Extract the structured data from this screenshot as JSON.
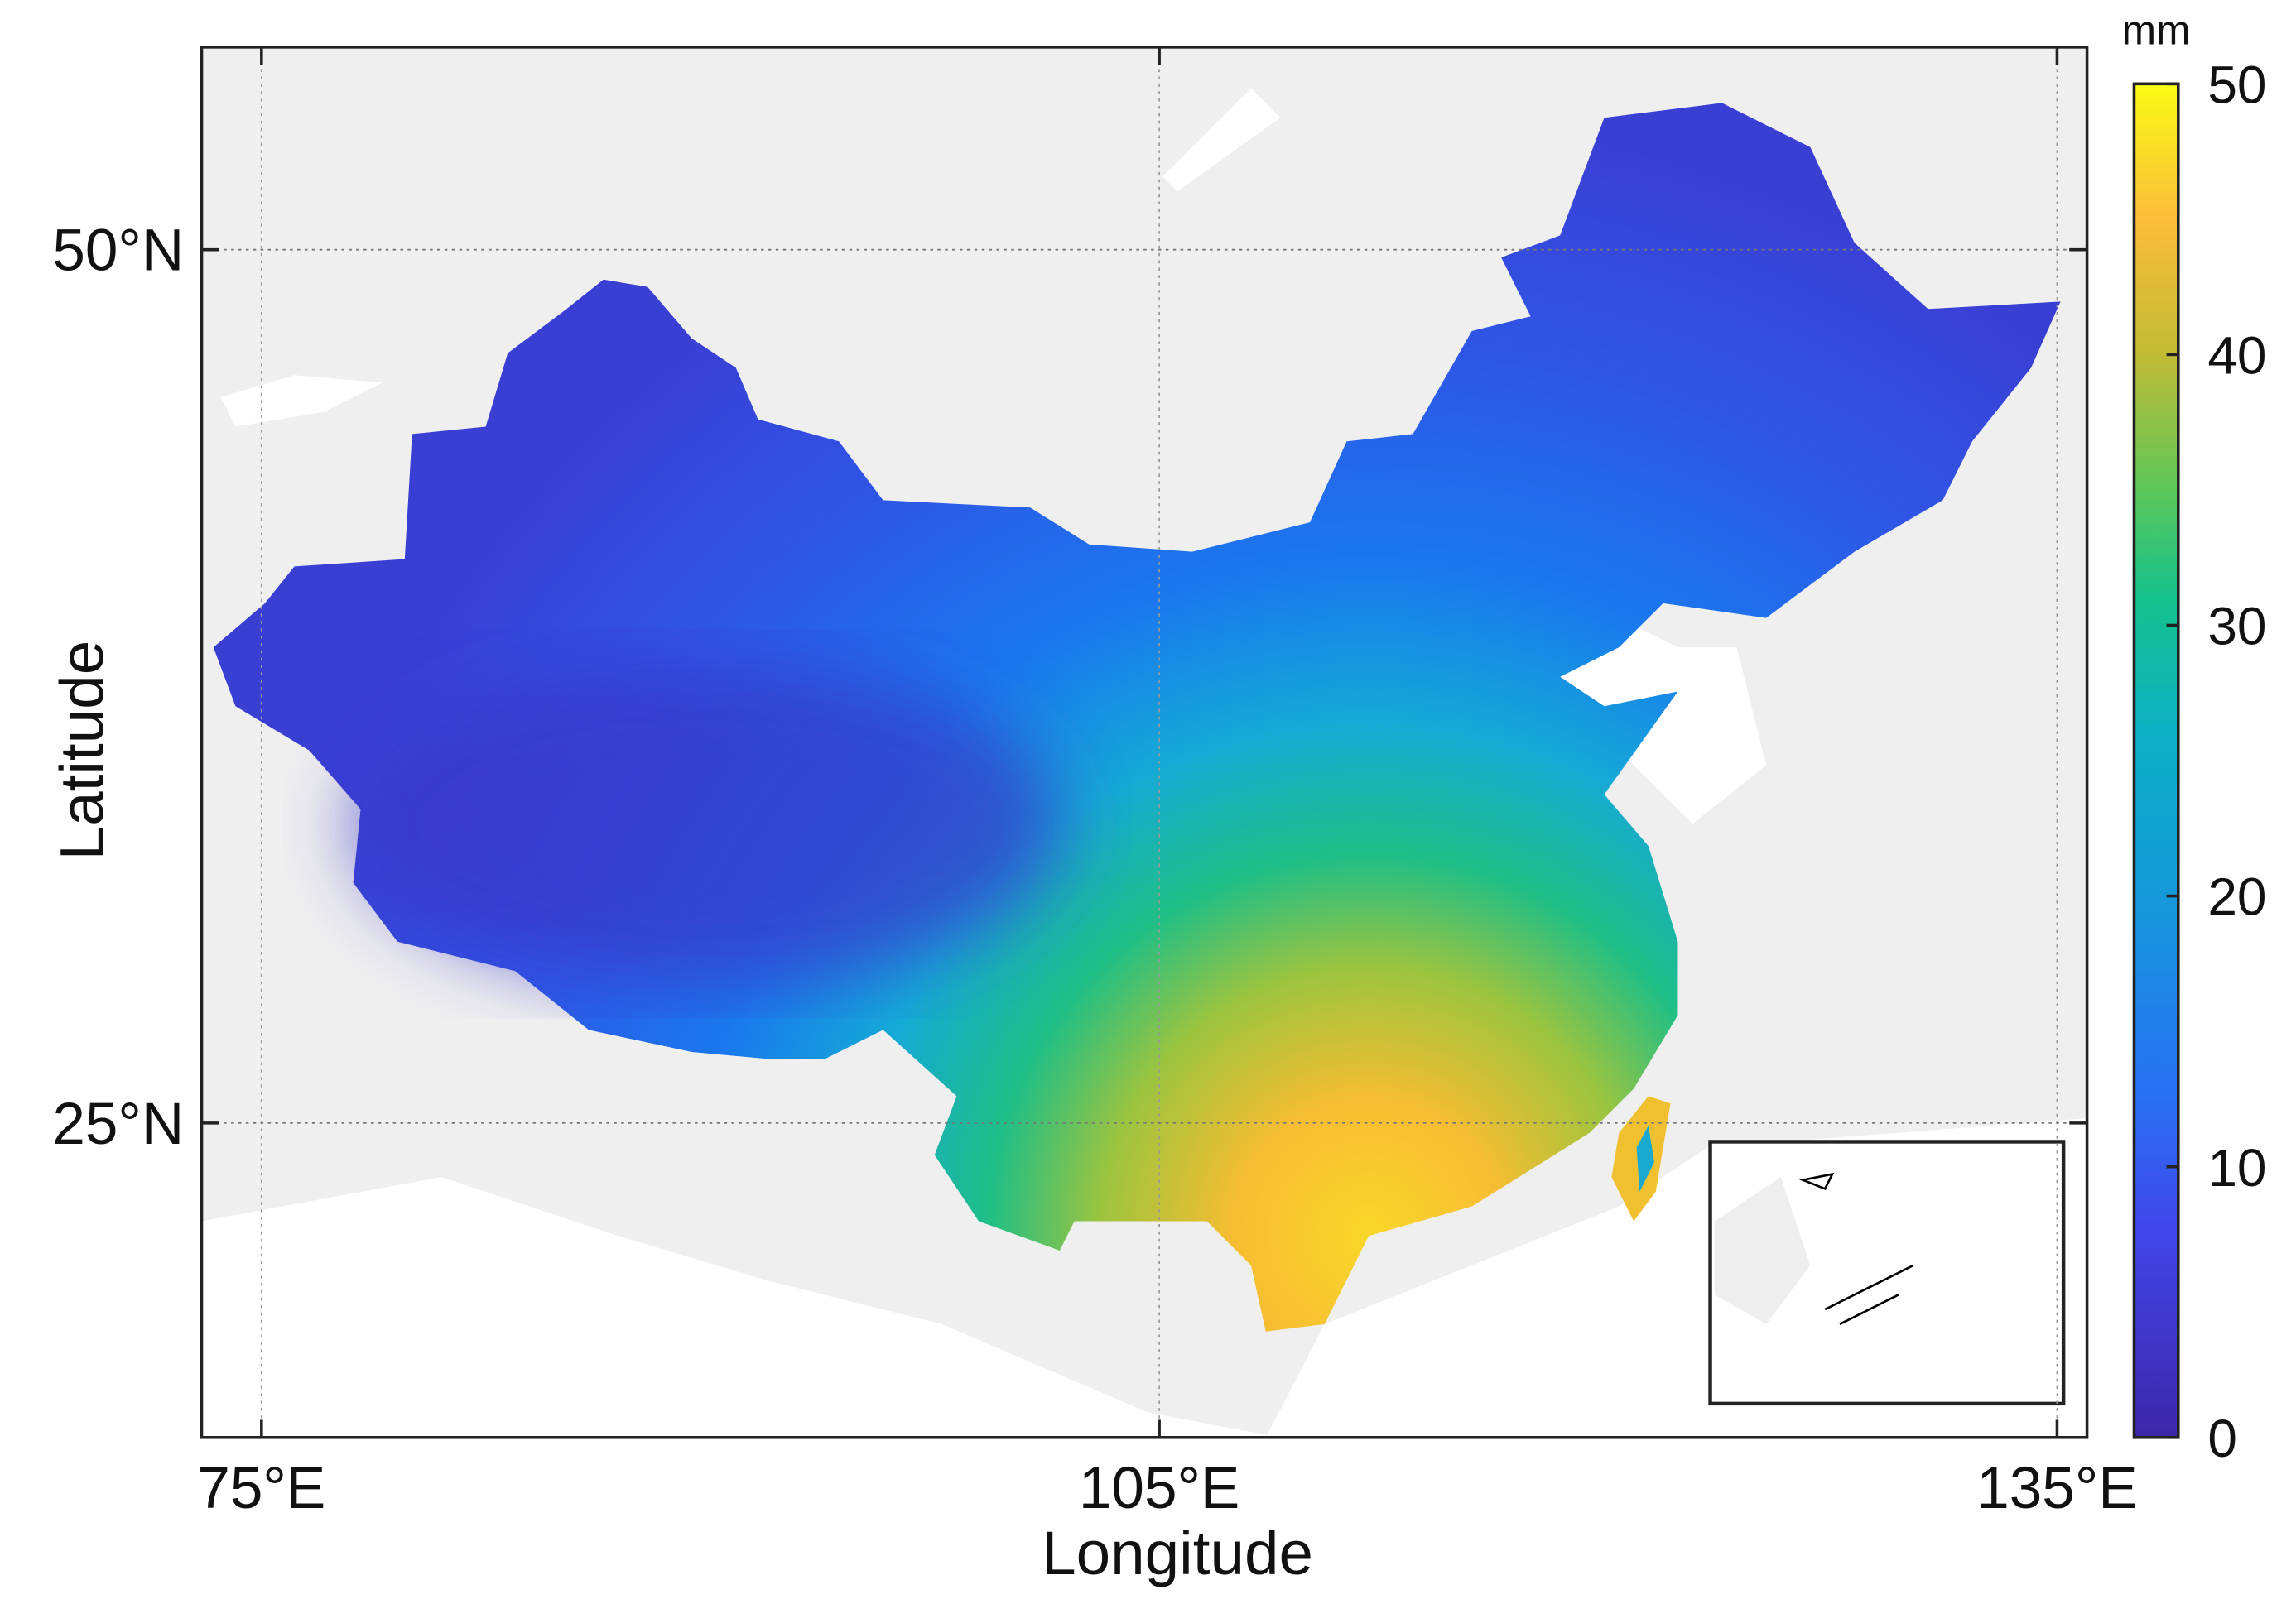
{
  "map": {
    "x_label": "Longitude",
    "y_label": "Latitude",
    "xlim": [
      73,
      136
    ],
    "ylim": [
      16,
      55.8
    ],
    "x_ticks": [
      {
        "value": 75,
        "label": "75°E"
      },
      {
        "value": 105,
        "label": "105°E"
      },
      {
        "value": 135,
        "label": "135°E"
      }
    ],
    "y_ticks": [
      {
        "value": 25,
        "label": "25°N"
      },
      {
        "value": 50,
        "label": "50°N"
      }
    ],
    "colorbar": {
      "unit": "mm",
      "lim": [
        0,
        50
      ],
      "ticks": [
        0,
        10,
        20,
        30,
        40,
        50
      ]
    }
  }
}
